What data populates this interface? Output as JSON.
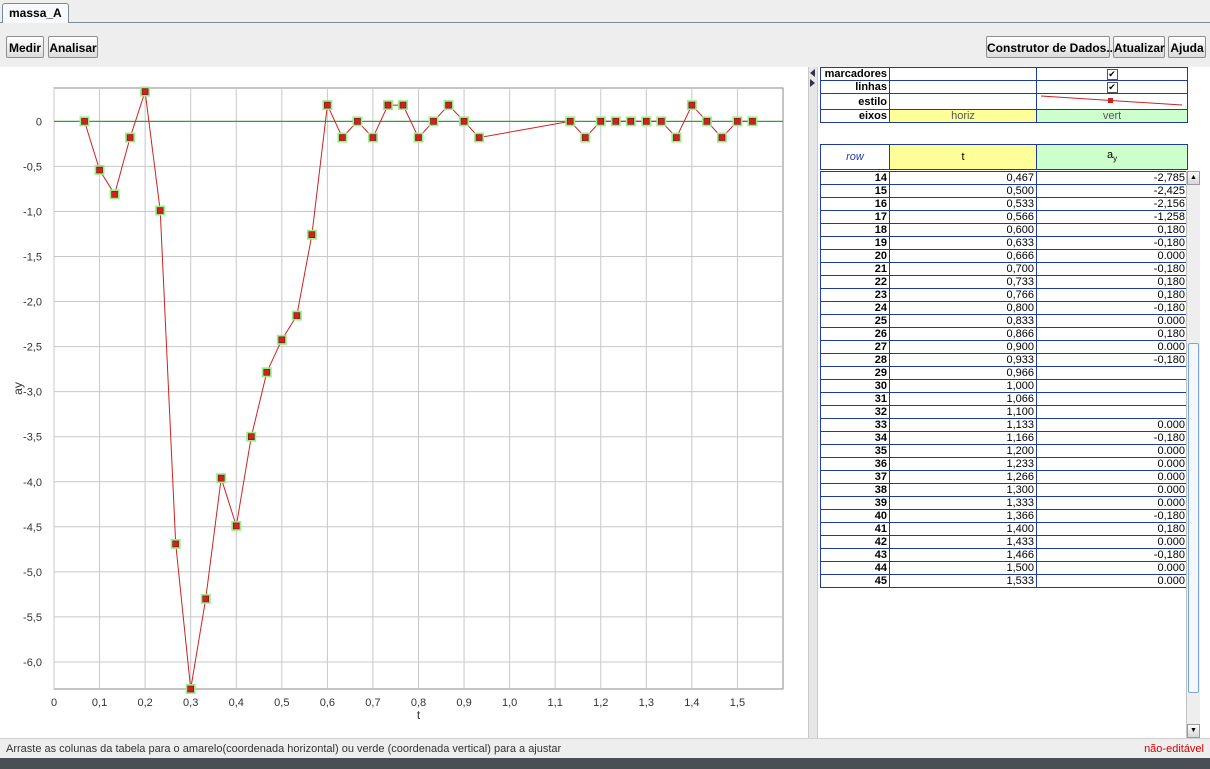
{
  "tab": {
    "label": "massa_A"
  },
  "toolbar": {
    "measure": "Medir",
    "analyze": "Analisar",
    "data_builder": "Construtor de Dados...",
    "refresh": "Atualizar",
    "help": "Ajuda"
  },
  "chart_data": {
    "type": "line",
    "xlabel": "t",
    "ylabel": "ay",
    "xlim": [
      0,
      1.6
    ],
    "ylim": [
      -6.3,
      0.37
    ],
    "x_ticks": [
      "0",
      "0,1",
      "0,2",
      "0,3",
      "0,4",
      "0,5",
      "0,6",
      "0,7",
      "0,8",
      "0,9",
      "1,0",
      "1,1",
      "1,2",
      "1,3",
      "1,4",
      "1,5"
    ],
    "y_ticks": [
      "0",
      "-0,5",
      "-1,0",
      "-1,5",
      "-2,0",
      "-2,5",
      "-3,0",
      "-3,5",
      "-4,0",
      "-4,5",
      "-5,0",
      "-5,5",
      "-6,0"
    ],
    "grid": true,
    "zero_line_color": "#22aa22",
    "line_color": "#cc2222",
    "marker_fill": "#cc2222",
    "marker_highlight": "#99ee88",
    "series": [
      {
        "segments": [
          [
            [
              0.067,
              0.0
            ],
            [
              0.1,
              -0.54
            ],
            [
              0.133,
              -0.81
            ],
            [
              0.167,
              -0.18
            ],
            [
              0.2,
              0.33
            ],
            [
              0.233,
              -0.99
            ],
            [
              0.267,
              -4.69
            ],
            [
              0.3,
              -6.3
            ],
            [
              0.333,
              -5.3
            ],
            [
              0.367,
              -3.96
            ],
            [
              0.4,
              -4.49
            ],
            [
              0.433,
              -3.5
            ],
            [
              0.467,
              -2.785
            ],
            [
              0.5,
              -2.425
            ],
            [
              0.533,
              -2.156
            ],
            [
              0.566,
              -1.258
            ],
            [
              0.6,
              0.18
            ],
            [
              0.633,
              -0.18
            ],
            [
              0.666,
              0.0
            ],
            [
              0.7,
              -0.18
            ],
            [
              0.733,
              0.18
            ],
            [
              0.766,
              0.18
            ],
            [
              0.8,
              -0.18
            ],
            [
              0.833,
              0.0
            ],
            [
              0.866,
              0.18
            ],
            [
              0.9,
              0.0
            ],
            [
              0.933,
              -0.18
            ],
            [
              1.133,
              0.0
            ],
            [
              1.166,
              -0.18
            ],
            [
              1.2,
              0.0
            ],
            [
              1.233,
              0.0
            ],
            [
              1.266,
              0.0
            ],
            [
              1.3,
              0.0
            ],
            [
              1.333,
              0.0
            ],
            [
              1.366,
              -0.18
            ],
            [
              1.4,
              0.18
            ],
            [
              1.433,
              0.0
            ],
            [
              1.466,
              -0.18
            ],
            [
              1.5,
              0.0
            ],
            [
              1.533,
              0.0
            ]
          ]
        ]
      }
    ]
  },
  "settings": {
    "rows": [
      {
        "label": "marcadores",
        "t": "",
        "ay": "check"
      },
      {
        "label": "linhas",
        "t": "",
        "ay": "check"
      },
      {
        "label": "estilo",
        "t": "",
        "ay": "style"
      },
      {
        "label": "eixos",
        "t": "horiz",
        "ay": "vert"
      }
    ]
  },
  "table": {
    "row_header": "row",
    "col_t": "t",
    "col_ay_base": "a",
    "col_ay_sub": "y",
    "rows": [
      [
        "14",
        "0,467",
        "-2,785"
      ],
      [
        "15",
        "0,500",
        "-2,425"
      ],
      [
        "16",
        "0,533",
        "-2,156"
      ],
      [
        "17",
        "0,566",
        "-1,258"
      ],
      [
        "18",
        "0,600",
        "0,180"
      ],
      [
        "19",
        "0,633",
        "-0,180"
      ],
      [
        "20",
        "0,666",
        "0.000"
      ],
      [
        "21",
        "0,700",
        "-0,180"
      ],
      [
        "22",
        "0,733",
        "0,180"
      ],
      [
        "23",
        "0,766",
        "0,180"
      ],
      [
        "24",
        "0,800",
        "-0,180"
      ],
      [
        "25",
        "0,833",
        "0.000"
      ],
      [
        "26",
        "0,866",
        "0,180"
      ],
      [
        "27",
        "0,900",
        "0.000"
      ],
      [
        "28",
        "0,933",
        "-0,180"
      ],
      [
        "29",
        "0,966",
        ""
      ],
      [
        "30",
        "1,000",
        ""
      ],
      [
        "31",
        "1,066",
        ""
      ],
      [
        "32",
        "1,100",
        ""
      ],
      [
        "33",
        "1,133",
        "0.000"
      ],
      [
        "34",
        "1,166",
        "-0,180"
      ],
      [
        "35",
        "1,200",
        "0.000"
      ],
      [
        "36",
        "1,233",
        "0.000"
      ],
      [
        "37",
        "1,266",
        "0.000"
      ],
      [
        "38",
        "1,300",
        "0.000"
      ],
      [
        "39",
        "1,333",
        "0.000"
      ],
      [
        "40",
        "1,366",
        "-0,180"
      ],
      [
        "41",
        "1,400",
        "0,180"
      ],
      [
        "42",
        "1,433",
        "0.000"
      ],
      [
        "43",
        "1,466",
        "-0,180"
      ],
      [
        "44",
        "1,500",
        "0.000"
      ],
      [
        "45",
        "1,533",
        "0.000"
      ]
    ]
  },
  "colors": {
    "horiz_bg": "#ffff99",
    "vert_bg": "#ccffcc",
    "grid_border": "#1f3aa0",
    "row_header_text": "#1f3aa0"
  },
  "status": {
    "hint": "Arraste as colunas da tabela para o amarelo(coordenada horizontal) ou verde (coordenada vertical) para a ajustar",
    "mode": "não-editável"
  }
}
